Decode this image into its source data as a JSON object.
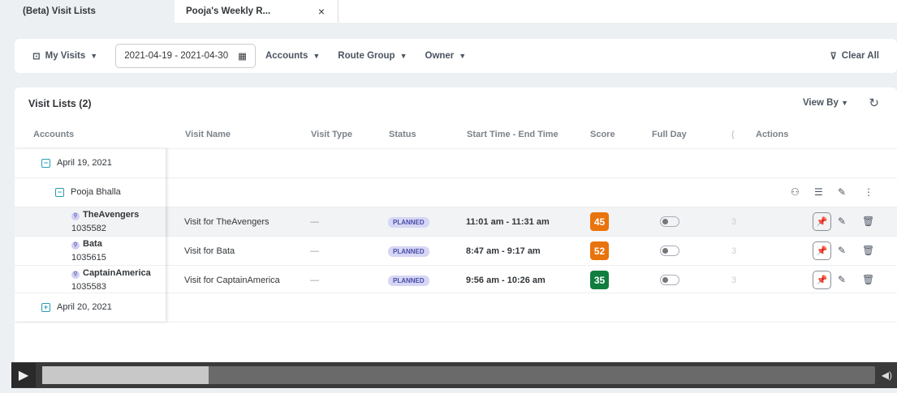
{
  "tabs": [
    {
      "label": "(Beta) Visit Lists"
    },
    {
      "label": "Pooja's Weekly R...",
      "close": "×"
    }
  ],
  "filters": {
    "my_visits": "My Visits",
    "date_range": "2021-04-19 - 2021-04-30",
    "accounts": "Accounts",
    "route_group": "Route Group",
    "owner": "Owner",
    "clear_all": "Clear All"
  },
  "panel": {
    "title": "Visit Lists (2)",
    "view_by": "View By"
  },
  "columns": [
    "Accounts",
    "Visit Name",
    "Visit Type",
    "Status",
    "Start Time - End Time",
    "Score",
    "Full Day",
    "(",
    "Actions"
  ],
  "groups": {
    "date1": "April 19, 2021",
    "owner": "Pooja Bhalla",
    "date2": "April 20, 2021"
  },
  "rows": [
    {
      "account": "TheAvengers",
      "id": "1035582",
      "visit": "Visit for TheAvengers",
      "type": "—",
      "status": "PLANNED",
      "time": "11:01 am - 11:31 am",
      "score": "45",
      "score_color": "#e9730c",
      "extra": "3",
      "full_day": false
    },
    {
      "account": "Bata",
      "id": "1035615",
      "visit": "Visit for Bata",
      "type": "—",
      "status": "PLANNED",
      "time": "8:47 am - 9:17 am",
      "score": "52",
      "score_color": "#e9730c",
      "extra": "3",
      "full_day": false
    },
    {
      "account": "CaptainAmerica",
      "id": "1035583",
      "visit": "Visit for CaptainAmerica",
      "type": "—",
      "status": "PLANNED",
      "time": "9:56 am - 10:26 am",
      "score": "35",
      "score_color": "#107e3e",
      "extra": "3",
      "full_day": false
    }
  ],
  "player": {
    "progress_percent": 20
  }
}
